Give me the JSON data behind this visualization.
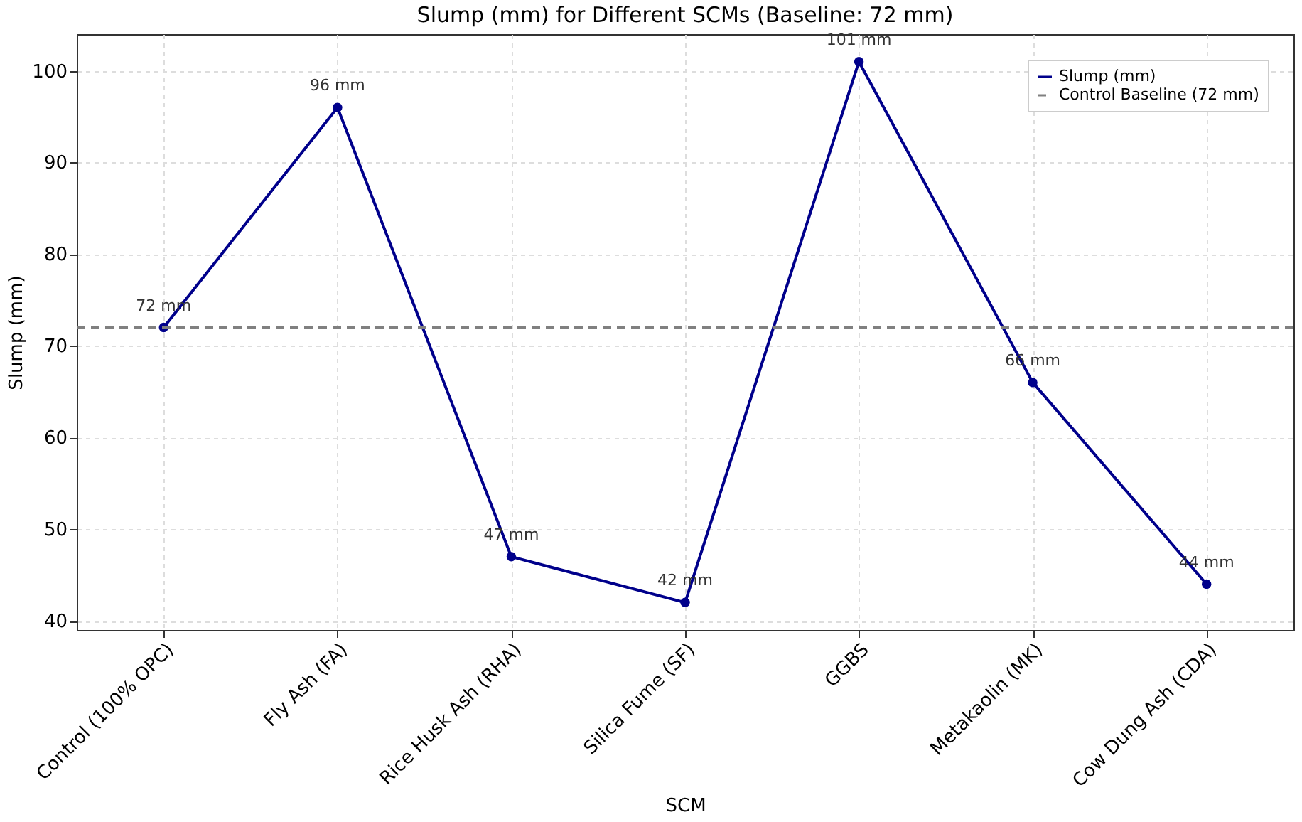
{
  "chart_data": {
    "type": "line",
    "title": "Slump (mm) for Different SCMs (Baseline: 72 mm)",
    "xlabel": "SCM",
    "ylabel": "Slump (mm)",
    "categories": [
      "Control (100% OPC)",
      "Fly Ash (FA)",
      "Rice Husk Ash (RHA)",
      "Silica Fume (SF)",
      "GGBS",
      "Metakaolin (MK)",
      "Cow Dung Ash (CDA)"
    ],
    "series": [
      {
        "name": "Slump (mm)",
        "color": "#00008b",
        "values": [
          72,
          96,
          47,
          42,
          101,
          66,
          44
        ],
        "value_labels": [
          "72 mm",
          "96 mm",
          "47 mm",
          "42 mm",
          "101 mm",
          "66 mm",
          "44 mm"
        ]
      }
    ],
    "ref_lines": [
      {
        "axis": "y",
        "value": 72,
        "label": "Control Baseline (72 mm)",
        "color": "#808080",
        "line_style": "dashed"
      }
    ],
    "ylim": [
      39,
      104
    ],
    "yticks": [
      40,
      50,
      60,
      70,
      80,
      90,
      100
    ],
    "grid": true,
    "legend": "top right",
    "marker": "circle",
    "line_style": "solid"
  }
}
